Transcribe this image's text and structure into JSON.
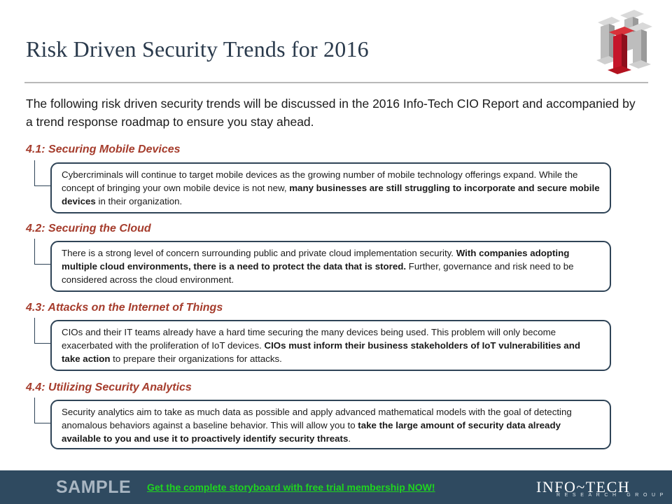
{
  "title": "Risk Driven Security Trends for 2016",
  "intro": "The following risk driven security trends will be discussed in the 2016 Info-Tech CIO Report and accompanied by a trend response roadmap to ensure you stay ahead.",
  "logo_icon": "info-tech-pillars-logo",
  "sections": [
    {
      "heading": "4.1: Securing Mobile Devices",
      "body": [
        "Cybercriminals will continue to target mobile devices as the growing number of mobile technology offerings expand. While the concept of bringing your own mobile device is not new, ",
        "many businesses are still struggling to incorporate and secure mobile devices",
        " in their organization."
      ]
    },
    {
      "heading": "4.2: Securing the Cloud",
      "body": [
        "There is a strong level of concern surrounding public and private cloud implementation security. ",
        "With companies adopting multiple cloud environments, there is a need to protect the data that is stored.",
        " Further, governance and risk need to be considered across the cloud environment."
      ]
    },
    {
      "heading": "4.3: Attacks on the Internet of Things",
      "body": [
        "CIOs and their IT teams already have a hard time securing the many devices being used. This problem will only become exacerbated with the proliferation of IoT devices. ",
        "CIOs must inform their business stakeholders of IoT vulnerabilities and take action",
        " to prepare their organizations for attacks."
      ]
    },
    {
      "heading": "4.4: Utilizing Security Analytics",
      "body": [
        "Security analytics aim to take as much data as possible and apply advanced mathematical models with the goal of detecting anomalous behaviors against a baseline behavior. This will allow you to ",
        "take the large amount of security data already available to you and use it to proactively identify security threats",
        "."
      ]
    }
  ],
  "footer": {
    "sample": "SAMPLE",
    "cta": "Get the complete storyboard with free trial membership NOW!",
    "brand": "INFO~TECH",
    "brand_sub": "RESEARCH GROUP"
  },
  "colors": {
    "heading_red": "#a53c2c",
    "box_border": "#2f4457",
    "footer_bg": "#2f4a60",
    "cta_green": "#1fd51f"
  }
}
